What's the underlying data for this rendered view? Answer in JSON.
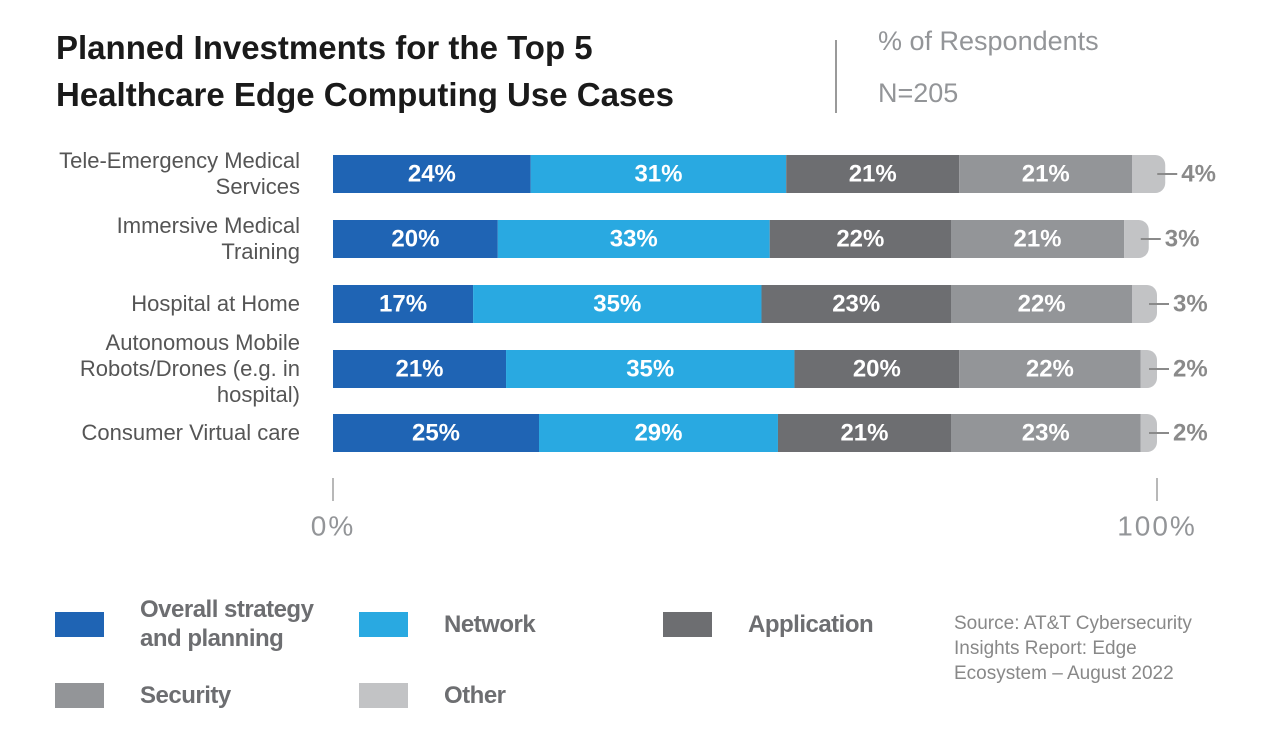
{
  "chart_data": {
    "type": "stacked_barh",
    "title": "Planned Investments for the Top 5 Healthcare Edge Computing Use Cases",
    "subtitle": "% of Respondents",
    "annotation": "N=205",
    "source": "Source: AT&T Cybersecurity Insights Report: Edge Ecosystem – August 2022",
    "categories": [
      "Tele-Emergency Medical Services",
      "Immersive Medical Training",
      "Hospital at Home",
      "Autonomous Mobile Robots/Drones (e.g. in hospital)",
      "Consumer Virtual care"
    ],
    "series": [
      {
        "name": "Overall strategy and planning",
        "color": "#1f64b4",
        "values": [
          24,
          20,
          17,
          21,
          25
        ],
        "value_labels": [
          "24%",
          "20%",
          "17%",
          "21%",
          "25%"
        ]
      },
      {
        "name": "Network",
        "color": "#29a9e1",
        "values": [
          31,
          33,
          35,
          35,
          29
        ],
        "value_labels": [
          "31%",
          "33%",
          "35%",
          "35%",
          "29%"
        ]
      },
      {
        "name": "Application",
        "color": "#6d6e71",
        "values": [
          21,
          22,
          23,
          20,
          21
        ],
        "value_labels": [
          "21%",
          "22%",
          "23%",
          "20%",
          "21%"
        ]
      },
      {
        "name": "Security",
        "color": "#939598",
        "values": [
          21,
          21,
          22,
          22,
          23
        ],
        "value_labels": [
          "21%",
          "21%",
          "22%",
          "22%",
          "23%"
        ]
      },
      {
        "name": "Other",
        "color": "#c2c3c5",
        "values": [
          4,
          3,
          3,
          2,
          2
        ],
        "value_labels": [
          "4%",
          "3%",
          "3%",
          "2%",
          "2%"
        ]
      }
    ],
    "xlim": [
      0,
      100
    ],
    "xticks": [
      {
        "value": 0,
        "label": "0%"
      },
      {
        "value": 100,
        "label": "100%"
      }
    ],
    "legend": "bottom"
  }
}
